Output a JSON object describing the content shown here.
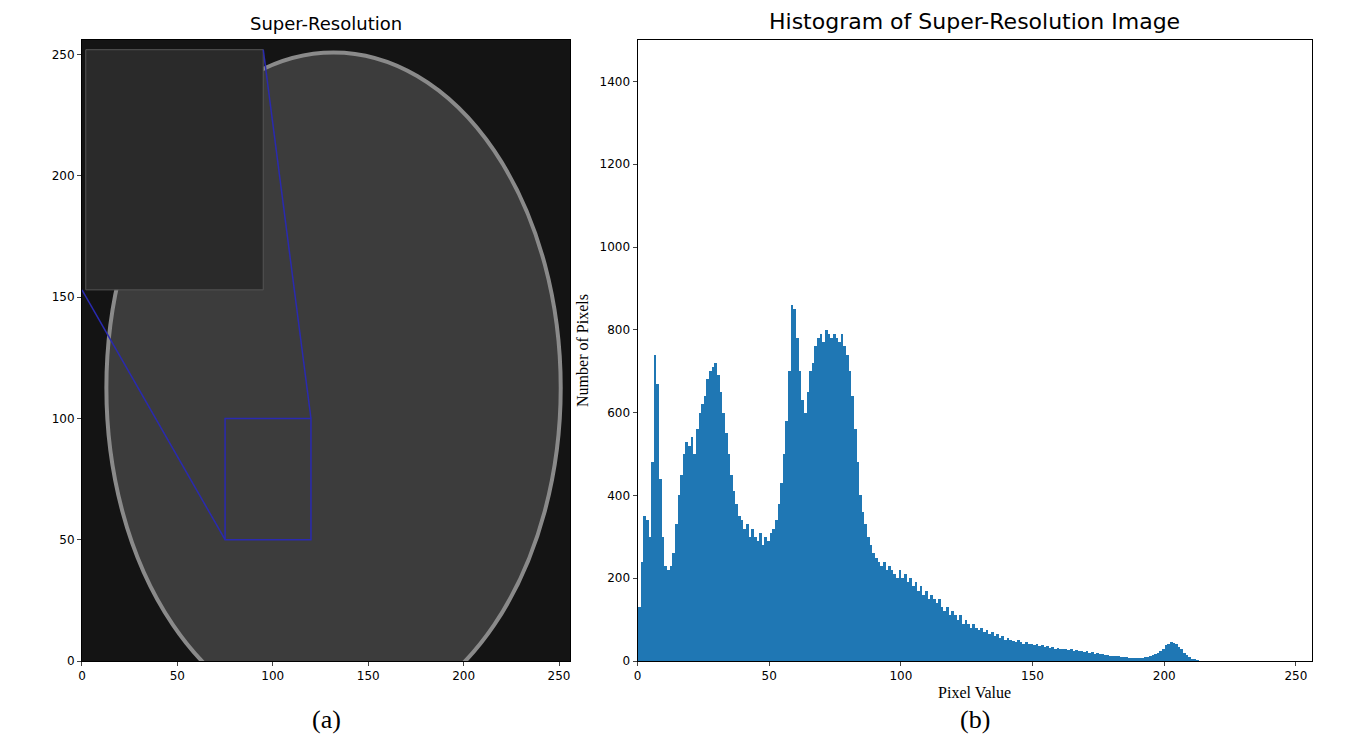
{
  "chart_data": [
    {
      "type": "image",
      "title": "Super-Resolution",
      "caption": "(a)",
      "xlim": [
        0,
        256
      ],
      "ylim": [
        0,
        256
      ],
      "xticks": [
        0,
        50,
        100,
        150,
        200,
        250
      ],
      "yticks": [
        0,
        50,
        100,
        150,
        200,
        250
      ],
      "zoom_box": {
        "x": [
          75,
          120
        ],
        "y": [
          50,
          100
        ]
      },
      "inset": {
        "x": [
          2,
          95
        ],
        "y": [
          153,
          252
        ]
      },
      "color": "#2a2ab0",
      "grid": false
    },
    {
      "type": "histogram",
      "title": "Histogram of Super-Resolution Image",
      "caption": "(b)",
      "x_label": "Pixel Value",
      "y_label": "Number of Pixels",
      "bins": [
        0,
        1,
        2,
        3,
        4,
        5,
        6,
        7,
        8,
        9,
        10,
        11,
        12,
        13,
        14,
        15,
        16,
        17,
        18,
        19,
        20,
        21,
        22,
        23,
        24,
        25,
        26,
        27,
        28,
        29,
        30,
        31,
        32,
        33,
        34,
        35,
        36,
        37,
        38,
        39,
        40,
        41,
        42,
        43,
        44,
        45,
        46,
        47,
        48,
        49,
        50,
        51,
        52,
        53,
        54,
        55,
        56,
        57,
        58,
        59,
        60,
        61,
        62,
        63,
        64,
        65,
        66,
        67,
        68,
        69,
        70,
        71,
        72,
        73,
        74,
        75,
        76,
        77,
        78,
        79,
        80,
        81,
        82,
        83,
        84,
        85,
        86,
        87,
        88,
        89,
        90,
        91,
        92,
        93,
        94,
        95,
        96,
        97,
        98,
        99,
        100,
        101,
        102,
        103,
        104,
        105,
        106,
        107,
        108,
        109,
        110,
        111,
        112,
        113,
        114,
        115,
        116,
        117,
        118,
        119,
        120,
        121,
        122,
        123,
        124,
        125,
        126,
        127,
        128,
        129,
        130,
        131,
        132,
        133,
        134,
        135,
        136,
        137,
        138,
        139,
        140,
        141,
        142,
        143,
        144,
        145,
        146,
        147,
        148,
        149,
        150,
        151,
        152,
        153,
        154,
        155,
        156,
        157,
        158,
        159,
        160,
        161,
        162,
        163,
        164,
        165,
        166,
        167,
        168,
        169,
        170,
        171,
        172,
        173,
        174,
        175,
        176,
        177,
        178,
        179,
        180,
        181,
        182,
        183,
        184,
        185,
        186,
        187,
        188,
        189,
        190,
        191,
        192,
        193,
        194,
        195,
        196,
        197,
        198,
        199,
        200,
        201,
        202,
        203,
        204,
        205,
        206,
        207,
        208,
        209,
        210,
        211,
        212,
        213,
        214,
        215,
        216,
        217,
        218,
        219,
        220,
        221,
        222,
        223,
        224,
        225,
        226,
        227,
        228,
        229,
        230,
        231,
        232,
        233,
        234,
        235,
        236,
        237,
        238,
        239,
        240,
        241,
        242,
        243,
        244,
        245,
        246,
        247,
        248,
        249,
        250,
        251,
        252,
        253,
        254,
        255,
        256
      ],
      "counts": [
        130,
        240,
        350,
        340,
        300,
        480,
        740,
        670,
        440,
        300,
        230,
        220,
        230,
        260,
        330,
        400,
        450,
        500,
        530,
        520,
        540,
        500,
        560,
        600,
        620,
        640,
        680,
        700,
        710,
        720,
        690,
        650,
        600,
        550,
        500,
        450,
        410,
        380,
        350,
        340,
        320,
        330,
        300,
        320,
        300,
        290,
        310,
        280,
        300,
        290,
        310,
        320,
        340,
        380,
        430,
        500,
        580,
        700,
        860,
        850,
        780,
        700,
        630,
        600,
        650,
        700,
        720,
        760,
        780,
        790,
        770,
        800,
        790,
        780,
        790,
        780,
        770,
        790,
        760,
        740,
        700,
        640,
        560,
        480,
        400,
        360,
        330,
        300,
        280,
        260,
        250,
        240,
        230,
        240,
        220,
        230,
        220,
        210,
        200,
        220,
        200,
        210,
        190,
        200,
        180,
        190,
        170,
        180,
        160,
        170,
        150,
        160,
        150,
        140,
        150,
        130,
        120,
        130,
        110,
        120,
        110,
        100,
        110,
        90,
        100,
        90,
        80,
        90,
        80,
        75,
        80,
        70,
        75,
        65,
        70,
        60,
        65,
        55,
        60,
        50,
        55,
        50,
        48,
        45,
        50,
        45,
        42,
        45,
        40,
        42,
        38,
        40,
        36,
        38,
        34,
        36,
        32,
        34,
        30,
        32,
        30,
        28,
        30,
        26,
        28,
        25,
        26,
        24,
        25,
        22,
        24,
        20,
        22,
        18,
        20,
        16,
        18,
        15,
        14,
        13,
        12,
        12,
        11,
        10,
        10,
        9,
        8,
        8,
        8,
        7,
        8,
        8,
        9,
        10,
        12,
        14,
        16,
        20,
        25,
        30,
        38,
        42,
        45,
        44,
        40,
        35,
        28,
        20,
        14,
        9,
        5,
        3,
        1,
        0,
        0,
        0,
        0,
        0,
        0,
        0,
        0,
        0,
        0,
        0,
        0,
        0,
        0,
        0,
        0,
        0,
        0,
        0,
        0,
        0,
        0,
        0,
        0,
        0,
        0,
        0,
        0,
        0,
        0,
        0,
        0,
        0,
        0,
        0,
        0,
        0,
        0,
        0,
        0,
        0,
        0,
        0
      ],
      "color": "#1f77b4",
      "xlim": [
        0,
        256
      ],
      "ylim": [
        0,
        1500
      ],
      "xticks": [
        0,
        50,
        100,
        150,
        200,
        250
      ],
      "yticks": [
        0,
        200,
        400,
        600,
        800,
        1000,
        1200,
        1400
      ],
      "grid": false
    }
  ]
}
